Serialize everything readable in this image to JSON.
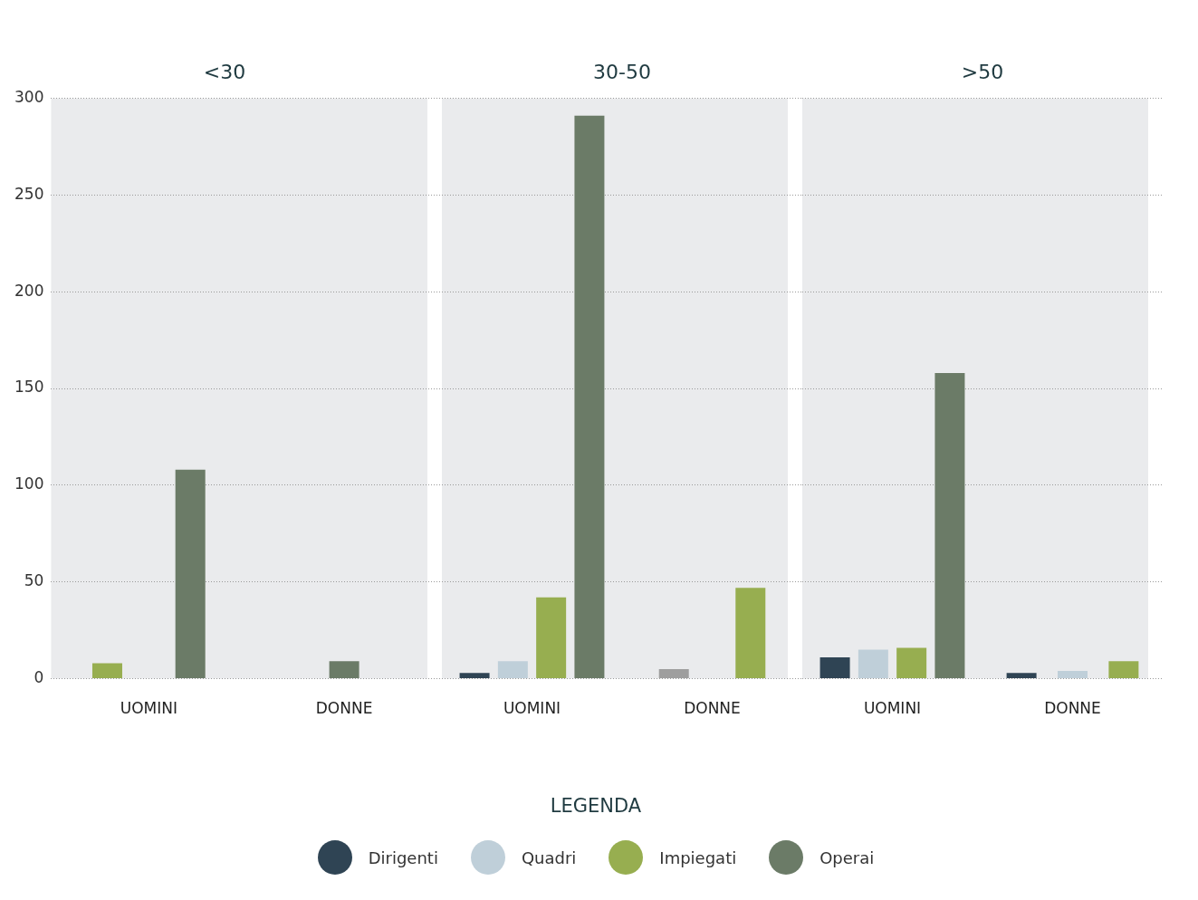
{
  "chart_data": [
    {
      "type": "bar",
      "title": "<30",
      "categories": [
        "UOMINI",
        "DONNE"
      ],
      "series": [
        {
          "name": "Dirigenti",
          "color": "#2f4454",
          "values": [
            null,
            null
          ]
        },
        {
          "name": "Quadri",
          "color": "#bfcfd9",
          "values": [
            null,
            null
          ]
        },
        {
          "name": "Impiegati",
          "color": "#97ae50",
          "values": [
            8,
            null
          ]
        },
        {
          "name": "Operai",
          "color": "#6b7b67",
          "values": [
            108,
            9
          ]
        }
      ],
      "ylim": [
        0,
        300
      ],
      "yticks": [
        0,
        50,
        100,
        150,
        200,
        250,
        300
      ],
      "grid": "y",
      "legend": "bottom",
      "legend_title": "LEGENDA"
    },
    {
      "type": "bar",
      "title": "30-50",
      "categories": [
        "UOMINI",
        "DONNE"
      ],
      "series": [
        {
          "color": "#2f4454",
          "values": [
            3,
            null
          ]
        },
        {
          "color": "#bfcfd9",
          "colors": [
            "#bfcfd9",
            "#9e9e9e"
          ],
          "values": [
            9,
            5
          ]
        },
        {
          "color": "#97ae50",
          "values": [
            42,
            47
          ]
        },
        {
          "color": "#6b7b67",
          "values": [
            291,
            null
          ]
        }
      ],
      "ylim": [
        0,
        300
      ],
      "yticks": [
        0,
        50,
        100,
        150,
        200,
        250,
        300
      ],
      "grid": "y",
      "tick_labels": "x"
    },
    {
      "type": "bar",
      "title": ">50",
      "categories": [
        "UOMINI",
        "DONNE"
      ],
      "series": [
        {
          "color": "#2f4454",
          "values": [
            11,
            3
          ]
        },
        {
          "color": "#bfcfd9",
          "values": [
            15,
            4
          ]
        },
        {
          "color": "#97ae50",
          "values": [
            16,
            9
          ]
        },
        {
          "color": "#6b7b67",
          "values": [
            158,
            null
          ]
        }
      ],
      "ylim": [
        0,
        300
      ],
      "yticks": [
        0,
        50,
        100,
        150,
        200,
        250,
        300
      ],
      "grid": "y",
      "tick_labels": "x"
    }
  ]
}
